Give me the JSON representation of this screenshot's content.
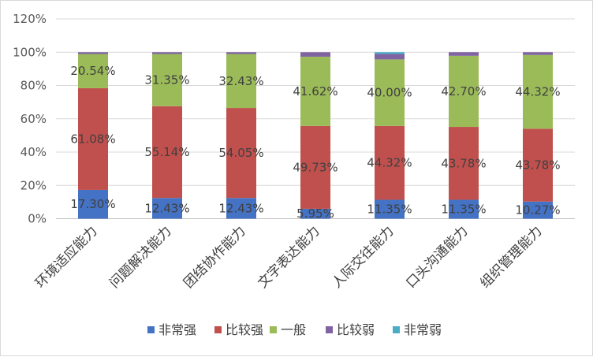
{
  "chart_data": {
    "type": "bar",
    "stacked": true,
    "categories": [
      "环境适应能力",
      "问题解决能力",
      "团结协作能力",
      "文字表达能力",
      "人际交往能力",
      "口头沟通能力",
      "组织管理能力"
    ],
    "series": [
      {
        "name": "非常强",
        "color": "#4472c4",
        "values": [
          17.3,
          12.43,
          12.43,
          5.95,
          11.35,
          11.35,
          10.27
        ],
        "labels": [
          "17.30%",
          "12.43%",
          "12.43%",
          "5.95%",
          "11.35%",
          "11.35%",
          "10.27%"
        ]
      },
      {
        "name": "比较强",
        "color": "#c0504d",
        "values": [
          61.08,
          55.14,
          54.05,
          49.73,
          44.32,
          43.78,
          43.78
        ],
        "labels": [
          "61.08%",
          "55.14%",
          "54.05%",
          "49.73%",
          "44.32%",
          "43.78%",
          "43.78%"
        ]
      },
      {
        "name": "一般",
        "color": "#9bbb59",
        "values": [
          20.54,
          31.35,
          32.43,
          41.62,
          40.0,
          42.7,
          44.32
        ],
        "labels": [
          "20.54%",
          "31.35%",
          "32.43%",
          "41.62%",
          "40.00%",
          "42.70%",
          "44.32%"
        ]
      },
      {
        "name": "比较弱",
        "color": "#8064a2",
        "values": [
          1.08,
          1.08,
          1.09,
          2.7,
          3.25,
          2.17,
          1.63
        ]
      },
      {
        "name": "非常弱",
        "color": "#4bacc6",
        "values": [
          0.0,
          0.0,
          0.0,
          0.0,
          1.08,
          0.0,
          0.0
        ]
      }
    ],
    "ylim": [
      0,
      120
    ],
    "yticks": [
      "0%",
      "20%",
      "40%",
      "60%",
      "80%",
      "100%",
      "120%"
    ],
    "ytick_values": [
      0,
      20,
      40,
      60,
      80,
      100,
      120
    ],
    "grid": true,
    "legend": "bottom"
  }
}
